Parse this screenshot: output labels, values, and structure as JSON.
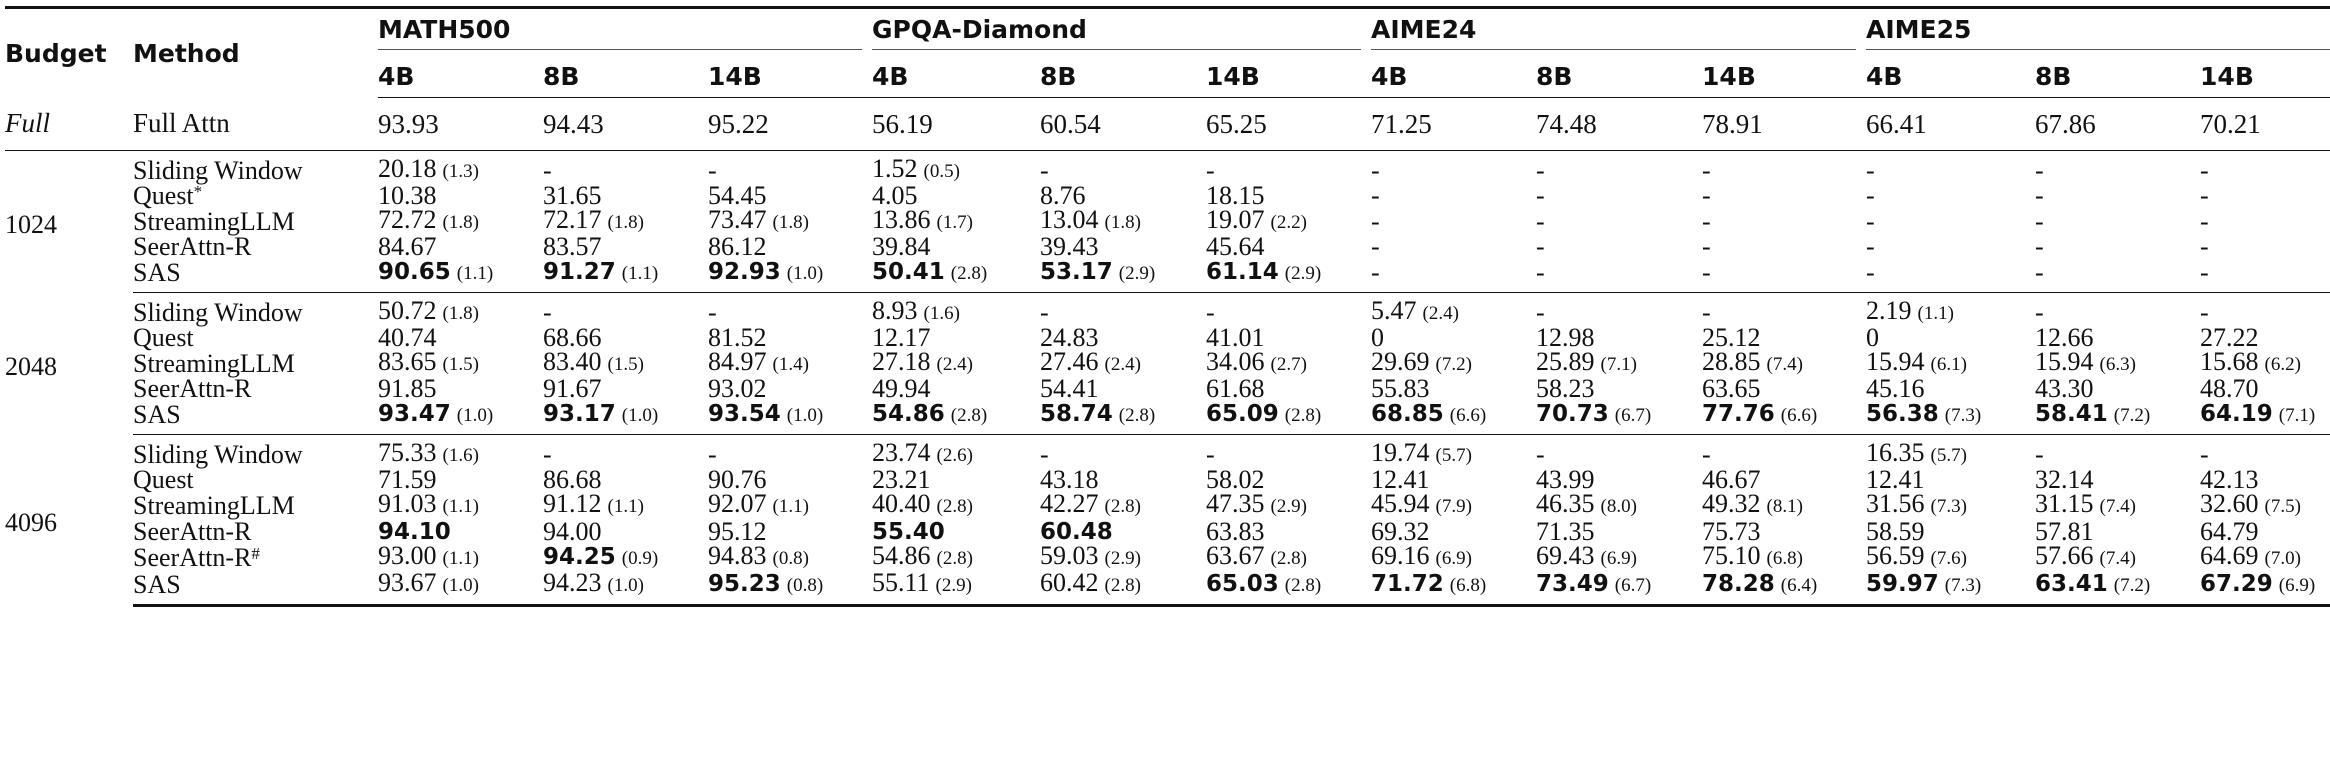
{
  "table": {
    "headers": {
      "budget": "Budget",
      "method": "Method",
      "groups": [
        "MATH500",
        "GPQA-Diamond",
        "AIME24",
        "AIME25"
      ],
      "sizes": [
        "4B",
        "8B",
        "14B"
      ]
    },
    "full": {
      "budget": "Full",
      "method": "Full Attn",
      "values": [
        "93.93",
        "94.43",
        "95.22",
        "56.19",
        "60.54",
        "65.25",
        "71.25",
        "74.48",
        "78.91",
        "66.41",
        "67.86",
        "70.21"
      ]
    },
    "blocks": [
      {
        "budget": "1024",
        "rows": [
          {
            "method": "Sliding Window",
            "cells": [
              {
                "v": "20.18",
                "s": "(1.3)"
              },
              {
                "v": "-"
              },
              {
                "v": "-"
              },
              {
                "v": "1.52",
                "s": "(0.5)"
              },
              {
                "v": "-"
              },
              {
                "v": "-"
              },
              {
                "v": "-"
              },
              {
                "v": "-"
              },
              {
                "v": "-"
              },
              {
                "v": "-"
              },
              {
                "v": "-"
              },
              {
                "v": "-"
              }
            ]
          },
          {
            "method": "Quest",
            "sup": "*",
            "cells": [
              {
                "v": "10.38"
              },
              {
                "v": "31.65"
              },
              {
                "v": "54.45"
              },
              {
                "v": "4.05"
              },
              {
                "v": "8.76"
              },
              {
                "v": "18.15"
              },
              {
                "v": "-"
              },
              {
                "v": "-"
              },
              {
                "v": "-"
              },
              {
                "v": "-"
              },
              {
                "v": "-"
              },
              {
                "v": "-"
              }
            ]
          },
          {
            "method": "StreamingLLM",
            "cells": [
              {
                "v": "72.72",
                "s": "(1.8)"
              },
              {
                "v": "72.17",
                "s": "(1.8)"
              },
              {
                "v": "73.47",
                "s": "(1.8)"
              },
              {
                "v": "13.86",
                "s": "(1.7)"
              },
              {
                "v": "13.04",
                "s": "(1.8)"
              },
              {
                "v": "19.07",
                "s": "(2.2)"
              },
              {
                "v": "-"
              },
              {
                "v": "-"
              },
              {
                "v": "-"
              },
              {
                "v": "-"
              },
              {
                "v": "-"
              },
              {
                "v": "-"
              }
            ]
          },
          {
            "method": "SeerAttn-R",
            "cells": [
              {
                "v": "84.67"
              },
              {
                "v": "83.57"
              },
              {
                "v": "86.12"
              },
              {
                "v": "39.84"
              },
              {
                "v": "39.43"
              },
              {
                "v": "45.64"
              },
              {
                "v": "-"
              },
              {
                "v": "-"
              },
              {
                "v": "-"
              },
              {
                "v": "-"
              },
              {
                "v": "-"
              },
              {
                "v": "-"
              }
            ]
          },
          {
            "method": "SAS",
            "cells": [
              {
                "v": "90.65",
                "s": "(1.1)",
                "b": true
              },
              {
                "v": "91.27",
                "s": "(1.1)",
                "b": true
              },
              {
                "v": "92.93",
                "s": "(1.0)",
                "b": true
              },
              {
                "v": "50.41",
                "s": "(2.8)",
                "b": true
              },
              {
                "v": "53.17",
                "s": "(2.9)",
                "b": true
              },
              {
                "v": "61.14",
                "s": "(2.9)",
                "b": true
              },
              {
                "v": "-"
              },
              {
                "v": "-"
              },
              {
                "v": "-"
              },
              {
                "v": "-"
              },
              {
                "v": "-"
              },
              {
                "v": "-"
              }
            ]
          }
        ]
      },
      {
        "budget": "2048",
        "rows": [
          {
            "method": "Sliding Window",
            "cells": [
              {
                "v": "50.72",
                "s": "(1.8)"
              },
              {
                "v": "-"
              },
              {
                "v": "-"
              },
              {
                "v": "8.93",
                "s": "(1.6)"
              },
              {
                "v": "-"
              },
              {
                "v": "-"
              },
              {
                "v": "5.47",
                "s": "(2.4)"
              },
              {
                "v": "-"
              },
              {
                "v": "-"
              },
              {
                "v": "2.19",
                "s": "(1.1)"
              },
              {
                "v": "-"
              },
              {
                "v": "-"
              }
            ]
          },
          {
            "method": "Quest",
            "cells": [
              {
                "v": "40.74"
              },
              {
                "v": "68.66"
              },
              {
                "v": "81.52"
              },
              {
                "v": "12.17"
              },
              {
                "v": "24.83"
              },
              {
                "v": "41.01"
              },
              {
                "v": "0"
              },
              {
                "v": "12.98"
              },
              {
                "v": "25.12"
              },
              {
                "v": "0"
              },
              {
                "v": "12.66"
              },
              {
                "v": "27.22"
              }
            ]
          },
          {
            "method": "StreamingLLM",
            "cells": [
              {
                "v": "83.65",
                "s": "(1.5)"
              },
              {
                "v": "83.40",
                "s": "(1.5)"
              },
              {
                "v": "84.97",
                "s": "(1.4)"
              },
              {
                "v": "27.18",
                "s": "(2.4)"
              },
              {
                "v": "27.46",
                "s": "(2.4)"
              },
              {
                "v": "34.06",
                "s": "(2.7)"
              },
              {
                "v": "29.69",
                "s": "(7.2)"
              },
              {
                "v": "25.89",
                "s": "(7.1)"
              },
              {
                "v": "28.85",
                "s": "(7.4)"
              },
              {
                "v": "15.94",
                "s": "(6.1)"
              },
              {
                "v": "15.94",
                "s": "(6.3)"
              },
              {
                "v": "15.68",
                "s": "(6.2)"
              }
            ]
          },
          {
            "method": "SeerAttn-R",
            "cells": [
              {
                "v": "91.85"
              },
              {
                "v": "91.67"
              },
              {
                "v": "93.02"
              },
              {
                "v": "49.94"
              },
              {
                "v": "54.41"
              },
              {
                "v": "61.68"
              },
              {
                "v": "55.83"
              },
              {
                "v": "58.23"
              },
              {
                "v": "63.65"
              },
              {
                "v": "45.16"
              },
              {
                "v": "43.30"
              },
              {
                "v": "48.70"
              }
            ]
          },
          {
            "method": "SAS",
            "cells": [
              {
                "v": "93.47",
                "s": "(1.0)",
                "b": true
              },
              {
                "v": "93.17",
                "s": "(1.0)",
                "b": true
              },
              {
                "v": "93.54",
                "s": "(1.0)",
                "b": true
              },
              {
                "v": "54.86",
                "s": "(2.8)",
                "b": true
              },
              {
                "v": "58.74",
                "s": "(2.8)",
                "b": true
              },
              {
                "v": "65.09",
                "s": "(2.8)",
                "b": true
              },
              {
                "v": "68.85",
                "s": "(6.6)",
                "b": true
              },
              {
                "v": "70.73",
                "s": "(6.7)",
                "b": true
              },
              {
                "v": "77.76",
                "s": "(6.6)",
                "b": true
              },
              {
                "v": "56.38",
                "s": "(7.3)",
                "b": true
              },
              {
                "v": "58.41",
                "s": "(7.2)",
                "b": true
              },
              {
                "v": "64.19",
                "s": "(7.1)",
                "b": true
              }
            ]
          }
        ]
      },
      {
        "budget": "4096",
        "rows": [
          {
            "method": "Sliding Window",
            "cells": [
              {
                "v": "75.33",
                "s": "(1.6)"
              },
              {
                "v": "-"
              },
              {
                "v": "-"
              },
              {
                "v": "23.74",
                "s": "(2.6)"
              },
              {
                "v": "-"
              },
              {
                "v": "-"
              },
              {
                "v": "19.74",
                "s": "(5.7)"
              },
              {
                "v": "-"
              },
              {
                "v": "-"
              },
              {
                "v": "16.35",
                "s": "(5.7)"
              },
              {
                "v": "-"
              },
              {
                "v": "-"
              }
            ]
          },
          {
            "method": "Quest",
            "cells": [
              {
                "v": "71.59"
              },
              {
                "v": "86.68"
              },
              {
                "v": "90.76"
              },
              {
                "v": "23.21"
              },
              {
                "v": "43.18"
              },
              {
                "v": "58.02"
              },
              {
                "v": "12.41"
              },
              {
                "v": "43.99"
              },
              {
                "v": "46.67"
              },
              {
                "v": "12.41"
              },
              {
                "v": "32.14"
              },
              {
                "v": "42.13"
              }
            ]
          },
          {
            "method": "StreamingLLM",
            "cells": [
              {
                "v": "91.03",
                "s": "(1.1)"
              },
              {
                "v": "91.12",
                "s": "(1.1)"
              },
              {
                "v": "92.07",
                "s": "(1.1)"
              },
              {
                "v": "40.40",
                "s": "(2.8)"
              },
              {
                "v": "42.27",
                "s": "(2.8)"
              },
              {
                "v": "47.35",
                "s": "(2.9)"
              },
              {
                "v": "45.94",
                "s": "(7.9)"
              },
              {
                "v": "46.35",
                "s": "(8.0)"
              },
              {
                "v": "49.32",
                "s": "(8.1)"
              },
              {
                "v": "31.56",
                "s": "(7.3)"
              },
              {
                "v": "31.15",
                "s": "(7.4)"
              },
              {
                "v": "32.60",
                "s": "(7.5)"
              }
            ]
          },
          {
            "method": "SeerAttn-R",
            "cells": [
              {
                "v": "94.10",
                "b": true
              },
              {
                "v": "94.00"
              },
              {
                "v": "95.12"
              },
              {
                "v": "55.40",
                "b": true
              },
              {
                "v": "60.48",
                "b": true
              },
              {
                "v": "63.83"
              },
              {
                "v": "69.32"
              },
              {
                "v": "71.35"
              },
              {
                "v": "75.73"
              },
              {
                "v": "58.59"
              },
              {
                "v": "57.81"
              },
              {
                "v": "64.79"
              }
            ]
          },
          {
            "method": "SeerAttn-R",
            "sup": "#",
            "cells": [
              {
                "v": "93.00",
                "s": "(1.1)"
              },
              {
                "v": "94.25",
                "s": "(0.9)",
                "b": true
              },
              {
                "v": "94.83",
                "s": "(0.8)"
              },
              {
                "v": "54.86",
                "s": "(2.8)"
              },
              {
                "v": "59.03",
                "s": "(2.9)"
              },
              {
                "v": "63.67",
                "s": "(2.8)"
              },
              {
                "v": "69.16",
                "s": "(6.9)"
              },
              {
                "v": "69.43",
                "s": "(6.9)"
              },
              {
                "v": "75.10",
                "s": "(6.8)"
              },
              {
                "v": "56.59",
                "s": "(7.6)"
              },
              {
                "v": "57.66",
                "s": "(7.4)"
              },
              {
                "v": "64.69",
                "s": "(7.0)"
              }
            ]
          },
          {
            "method": "SAS",
            "cells": [
              {
                "v": "93.67",
                "s": "(1.0)"
              },
              {
                "v": "94.23",
                "s": "(1.0)"
              },
              {
                "v": "95.23",
                "s": "(0.8)",
                "b": true
              },
              {
                "v": "55.11",
                "s": "(2.9)"
              },
              {
                "v": "60.42",
                "s": "(2.8)"
              },
              {
                "v": "65.03",
                "s": "(2.8)",
                "b": true
              },
              {
                "v": "71.72",
                "s": "(6.8)",
                "b": true
              },
              {
                "v": "73.49",
                "s": "(6.7)",
                "b": true
              },
              {
                "v": "78.28",
                "s": "(6.4)",
                "b": true
              },
              {
                "v": "59.97",
                "s": "(7.3)",
                "b": true
              },
              {
                "v": "63.41",
                "s": "(7.2)",
                "b": true
              },
              {
                "v": "67.29",
                "s": "(6.9)",
                "b": true
              }
            ]
          }
        ]
      }
    ]
  }
}
